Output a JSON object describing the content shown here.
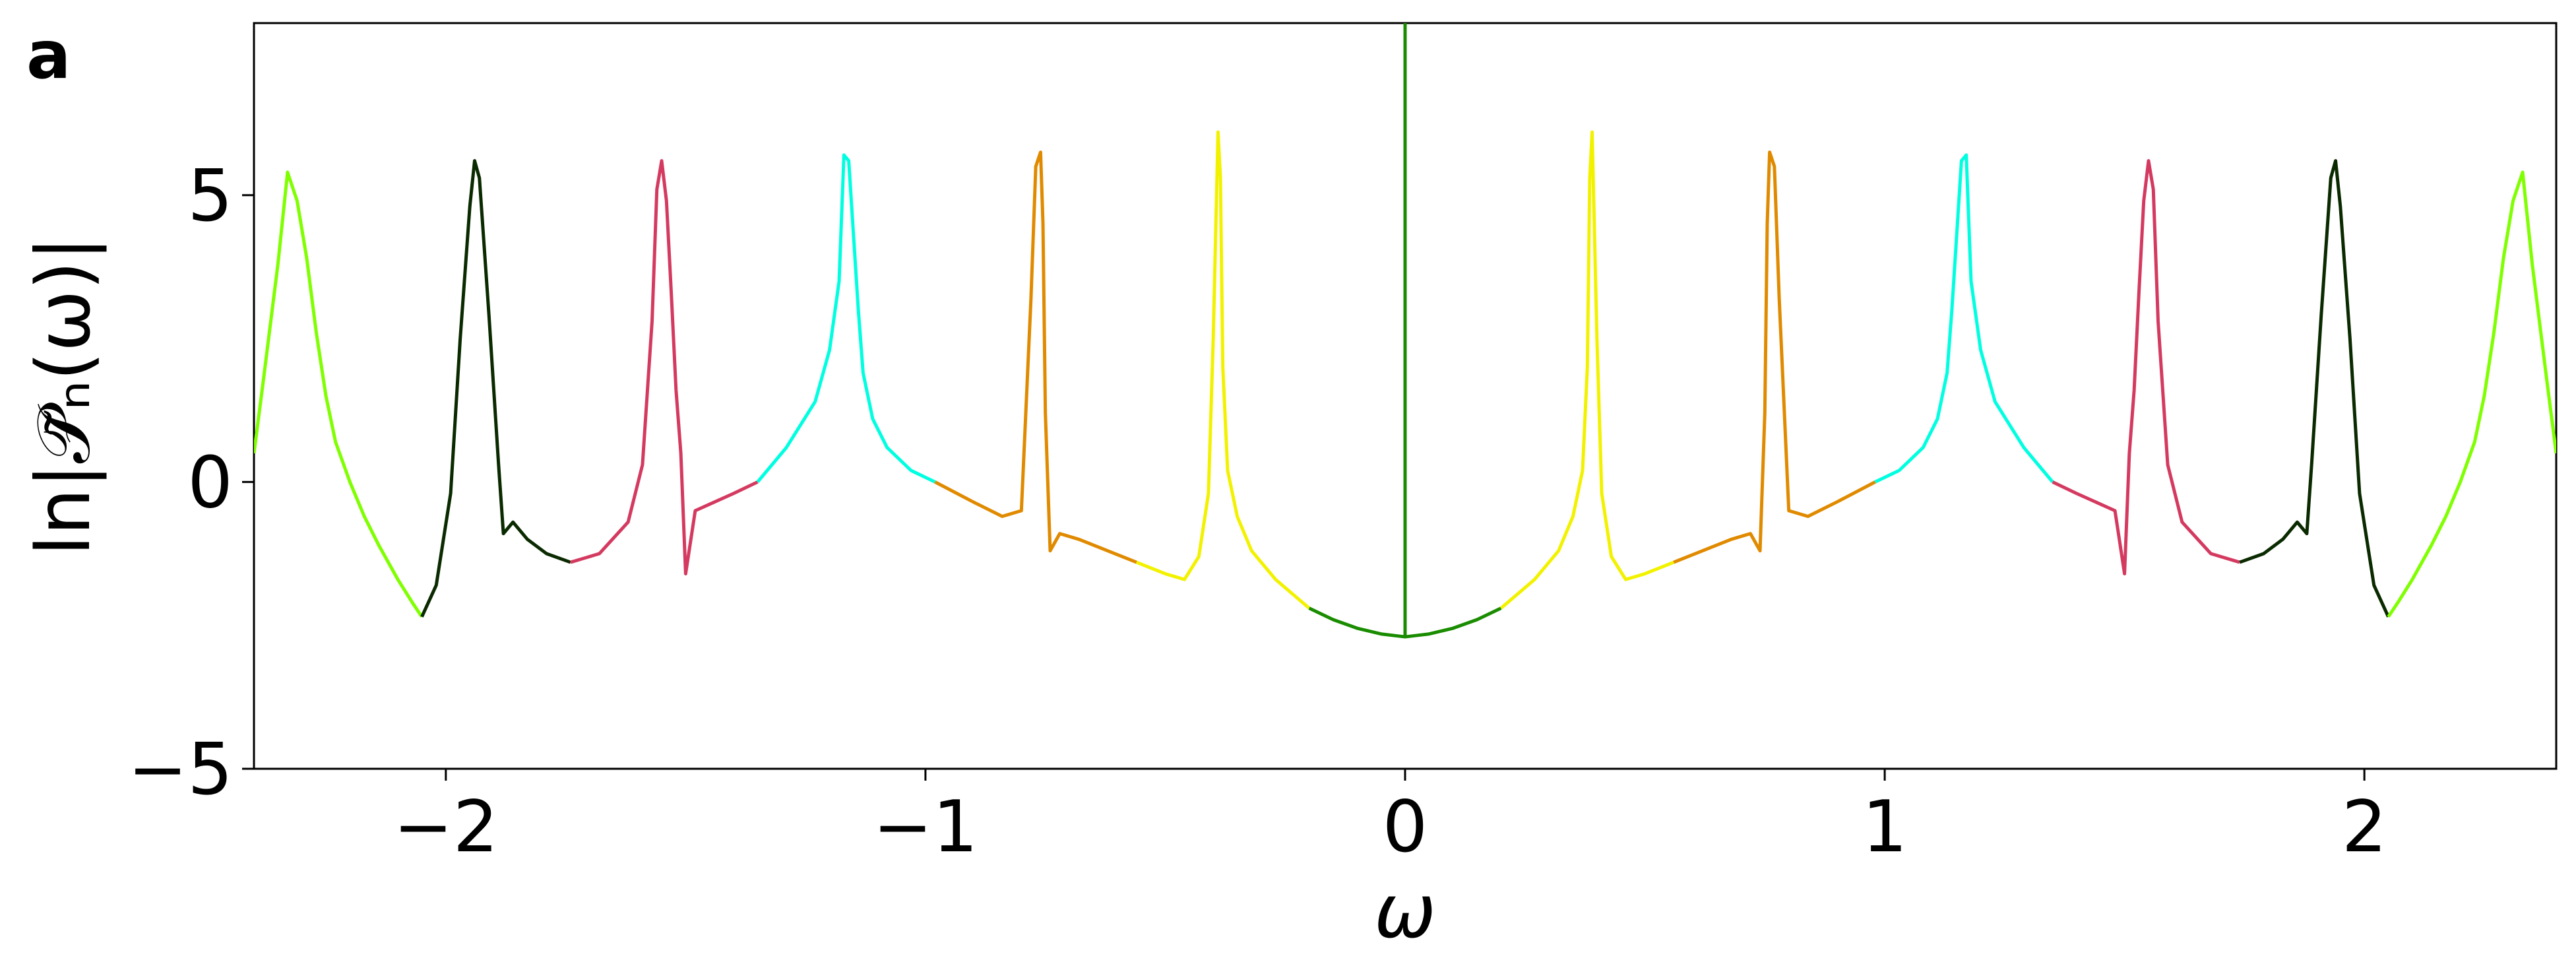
{
  "panel_label": "a",
  "chart_data": {
    "type": "line",
    "title": "",
    "xlabel": "ω",
    "ylabel": "ln|𝒫̃ₙ(ω)|",
    "xlim": [
      -2.4,
      2.4
    ],
    "ylim": [
      -5,
      8
    ],
    "x_ticks": [
      -2,
      -1,
      0,
      1,
      2
    ],
    "x_tick_labels": [
      "−2",
      "−1",
      "0",
      "1",
      "2"
    ],
    "y_ticks": [
      -5,
      0,
      5
    ],
    "y_tick_labels": [
      "−5",
      "0",
      "5"
    ],
    "grid": false,
    "legend": "none",
    "center_spike": {
      "x": 0,
      "y_from": -2.7,
      "y_to": 8,
      "color": "#1a8c00"
    },
    "series": [
      {
        "color": "#7fff00",
        "x": [
          -2.4,
          -2.38,
          -2.35,
          -2.33,
          -2.31,
          -2.29,
          -2.27,
          -2.25,
          -2.23,
          -2.2,
          -2.17,
          -2.14,
          -2.1,
          -2.07,
          -2.05
        ],
        "y": [
          0.5,
          1.8,
          3.8,
          5.4,
          4.9,
          3.9,
          2.6,
          1.5,
          0.7,
          0.0,
          -0.6,
          -1.1,
          -1.7,
          -2.1,
          -2.35
        ]
      },
      {
        "color": "#0a2a00",
        "x": [
          -2.05,
          -2.02,
          -1.99,
          -1.97,
          -1.95,
          -1.94,
          -1.93,
          -1.92,
          -1.91,
          -1.9,
          -1.89,
          -1.88,
          -1.86,
          -1.83,
          -1.79,
          -1.74
        ],
        "y": [
          -2.35,
          -1.8,
          -0.2,
          2.5,
          4.8,
          5.6,
          5.3,
          4.1,
          2.9,
          1.6,
          0.3,
          -0.9,
          -0.7,
          -1.0,
          -1.25,
          -1.4
        ]
      },
      {
        "color": "#d43a60",
        "x": [
          -1.74,
          -1.68,
          -1.62,
          -1.59,
          -1.57,
          -1.56,
          -1.55,
          -1.54,
          -1.53,
          -1.52,
          -1.51,
          -1.5,
          -1.48,
          -1.44,
          -1.4,
          -1.35
        ],
        "y": [
          -1.4,
          -1.25,
          -0.7,
          0.3,
          2.8,
          5.1,
          5.6,
          4.9,
          3.3,
          1.6,
          0.5,
          -1.6,
          -0.5,
          -0.35,
          -0.2,
          0.0
        ]
      },
      {
        "color": "#00ffe0",
        "x": [
          -1.35,
          -1.29,
          -1.23,
          -1.2,
          -1.18,
          -1.17,
          -1.16,
          -1.15,
          -1.14,
          -1.13,
          -1.11,
          -1.08,
          -1.03,
          -0.98
        ],
        "y": [
          0.0,
          0.6,
          1.4,
          2.3,
          3.5,
          5.7,
          5.6,
          4.3,
          3.0,
          1.9,
          1.1,
          0.6,
          0.2,
          0.0
        ]
      },
      {
        "color": "#e08a00",
        "x": [
          -0.98,
          -0.9,
          -0.84,
          -0.8,
          -0.78,
          -0.77,
          -0.76,
          -0.755,
          -0.75,
          -0.74,
          -0.72,
          -0.68,
          -0.62,
          -0.56
        ],
        "y": [
          0.0,
          -0.35,
          -0.6,
          -0.5,
          3.2,
          5.5,
          5.75,
          4.5,
          1.2,
          -1.2,
          -0.9,
          -1.0,
          -1.2,
          -1.4
        ]
      },
      {
        "color": "#f2f200",
        "x": [
          -0.56,
          -0.5,
          -0.46,
          -0.43,
          -0.41,
          -0.4,
          -0.39,
          -0.385,
          -0.38,
          -0.37,
          -0.35,
          -0.32,
          -0.27,
          -0.2
        ],
        "y": [
          -1.4,
          -1.6,
          -1.7,
          -1.3,
          -0.2,
          2.5,
          6.1,
          5.3,
          2.0,
          0.2,
          -0.6,
          -1.2,
          -1.7,
          -2.2
        ]
      },
      {
        "color": "#1a8c00",
        "x": [
          -0.2,
          -0.15,
          -0.1,
          -0.05,
          0.0,
          0.05,
          0.1,
          0.15,
          0.2
        ],
        "y": [
          -2.2,
          -2.4,
          -2.55,
          -2.65,
          -2.7,
          -2.65,
          -2.55,
          -2.4,
          -2.2
        ]
      },
      {
        "color": "#f2f200",
        "x": [
          0.2,
          0.27,
          0.32,
          0.35,
          0.37,
          0.38,
          0.385,
          0.39,
          0.4,
          0.41,
          0.43,
          0.46,
          0.5,
          0.56
        ],
        "y": [
          -2.2,
          -1.7,
          -1.2,
          -0.6,
          0.2,
          2.0,
          5.3,
          6.1,
          2.5,
          -0.2,
          -1.3,
          -1.7,
          -1.6,
          -1.4
        ]
      },
      {
        "color": "#e08a00",
        "x": [
          0.56,
          0.62,
          0.68,
          0.72,
          0.74,
          0.75,
          0.755,
          0.76,
          0.77,
          0.78,
          0.8,
          0.84,
          0.9,
          0.98
        ],
        "y": [
          -1.4,
          -1.2,
          -1.0,
          -0.9,
          -1.2,
          1.2,
          4.5,
          5.75,
          5.5,
          3.2,
          -0.5,
          -0.6,
          -0.35,
          0.0
        ]
      },
      {
        "color": "#00ffe0",
        "x": [
          0.98,
          1.03,
          1.08,
          1.11,
          1.13,
          1.14,
          1.15,
          1.16,
          1.17,
          1.18,
          1.2,
          1.23,
          1.29,
          1.35
        ],
        "y": [
          0.0,
          0.2,
          0.6,
          1.1,
          1.9,
          3.0,
          4.3,
          5.6,
          5.7,
          3.5,
          2.3,
          1.4,
          0.6,
          0.0
        ]
      },
      {
        "color": "#d43a60",
        "x": [
          1.35,
          1.4,
          1.44,
          1.48,
          1.5,
          1.51,
          1.52,
          1.53,
          1.54,
          1.55,
          1.56,
          1.57,
          1.59,
          1.62,
          1.68,
          1.74
        ],
        "y": [
          0.0,
          -0.2,
          -0.35,
          -0.5,
          -1.6,
          0.5,
          1.6,
          3.3,
          4.9,
          5.6,
          5.1,
          2.8,
          0.3,
          -0.7,
          -1.25,
          -1.4
        ]
      },
      {
        "color": "#0a2a00",
        "x": [
          1.74,
          1.79,
          1.83,
          1.86,
          1.88,
          1.89,
          1.9,
          1.91,
          1.92,
          1.93,
          1.94,
          1.95,
          1.97,
          1.99,
          2.02,
          2.05
        ],
        "y": [
          -1.4,
          -1.25,
          -1.0,
          -0.7,
          -0.9,
          0.3,
          1.6,
          2.9,
          4.1,
          5.3,
          5.6,
          4.8,
          2.5,
          -0.2,
          -1.8,
          -2.35
        ]
      },
      {
        "color": "#7fff00",
        "x": [
          2.05,
          2.07,
          2.1,
          2.14,
          2.17,
          2.2,
          2.23,
          2.25,
          2.27,
          2.29,
          2.31,
          2.33,
          2.35,
          2.38,
          2.4
        ],
        "y": [
          -2.35,
          -2.1,
          -1.7,
          -1.1,
          -0.6,
          0.0,
          0.7,
          1.5,
          2.6,
          3.9,
          4.9,
          5.4,
          3.8,
          1.8,
          0.5
        ]
      }
    ]
  }
}
